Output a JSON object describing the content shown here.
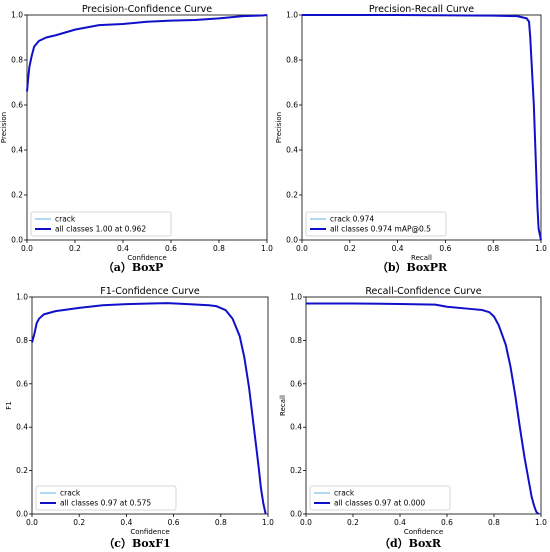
{
  "chart_data": [
    {
      "type": "line",
      "title": "Precision-Confidence Curve",
      "xlabel": "Confidence",
      "ylabel": "Precision",
      "xlim": [
        0,
        1
      ],
      "ylim": [
        0,
        1
      ],
      "xticks": [
        "0.0",
        "0.2",
        "0.4",
        "0.6",
        "0.8",
        "1.0"
      ],
      "yticks": [
        "0.0",
        "0.2",
        "0.4",
        "0.6",
        "0.8",
        "1.0"
      ],
      "caption": "（a）BoxP",
      "legend_position": "lower-left",
      "series": [
        {
          "name": "crack",
          "color": "#5fb2e4",
          "width": 1,
          "x": [
            0,
            0.005,
            0.01,
            0.02,
            0.03,
            0.05,
            0.08,
            0.12,
            0.2,
            0.3,
            0.4,
            0.5,
            0.6,
            0.7,
            0.8,
            0.85,
            0.9,
            0.93,
            0.96,
            0.98,
            1.0
          ],
          "y": [
            0.66,
            0.72,
            0.77,
            0.82,
            0.86,
            0.885,
            0.9,
            0.91,
            0.935,
            0.955,
            0.96,
            0.97,
            0.975,
            0.978,
            0.985,
            0.99,
            0.995,
            0.996,
            0.997,
            0.998,
            1.0
          ]
        },
        {
          "name": "all classes 1.00 at 0.962",
          "color": "#1010c8",
          "width": 2,
          "x": [
            0,
            0.005,
            0.01,
            0.02,
            0.03,
            0.05,
            0.08,
            0.12,
            0.2,
            0.3,
            0.4,
            0.5,
            0.6,
            0.7,
            0.8,
            0.85,
            0.9,
            0.93,
            0.96,
            0.98,
            1.0
          ],
          "y": [
            0.66,
            0.72,
            0.77,
            0.82,
            0.86,
            0.885,
            0.9,
            0.91,
            0.935,
            0.955,
            0.96,
            0.97,
            0.975,
            0.978,
            0.985,
            0.99,
            0.995,
            0.996,
            0.997,
            0.998,
            1.0
          ]
        }
      ]
    },
    {
      "type": "line",
      "title": "Precision-Recall Curve",
      "xlabel": "Recall",
      "ylabel": "Precision",
      "xlim": [
        0,
        1
      ],
      "ylim": [
        0,
        1
      ],
      "xticks": [
        "0.0",
        "0.2",
        "0.4",
        "0.6",
        "0.8",
        "1.0"
      ],
      "yticks": [
        "0.0",
        "0.2",
        "0.4",
        "0.6",
        "0.8",
        "1.0"
      ],
      "caption": "（b）BoxPR",
      "legend_position": "lower-left",
      "series": [
        {
          "name": "crack 0.974",
          "color": "#5fb2e4",
          "width": 1,
          "x": [
            0,
            0.4,
            0.8,
            0.9,
            0.92,
            0.94,
            0.95,
            0.955,
            0.96,
            0.97,
            0.975,
            0.98,
            0.985,
            0.99,
            1.0
          ],
          "y": [
            1.0,
            1.0,
            0.997,
            0.995,
            0.99,
            0.985,
            0.97,
            0.9,
            0.8,
            0.6,
            0.45,
            0.3,
            0.15,
            0.05,
            0.0
          ]
        },
        {
          "name": "all classes 0.974 mAP@0.5",
          "color": "#1010c8",
          "width": 2,
          "x": [
            0,
            0.4,
            0.8,
            0.9,
            0.92,
            0.94,
            0.95,
            0.955,
            0.96,
            0.97,
            0.975,
            0.98,
            0.985,
            0.99,
            1.0
          ],
          "y": [
            1.0,
            1.0,
            0.997,
            0.995,
            0.99,
            0.985,
            0.97,
            0.9,
            0.8,
            0.6,
            0.45,
            0.3,
            0.15,
            0.05,
            0.0
          ]
        }
      ]
    },
    {
      "type": "line",
      "title": "F1-Confidence Curve",
      "xlabel": "Confidence",
      "ylabel": "F1",
      "xlim": [
        0,
        1
      ],
      "ylim": [
        0,
        1
      ],
      "xticks": [
        "0.0",
        "0.2",
        "0.4",
        "0.6",
        "0.8",
        "1.0"
      ],
      "yticks": [
        "0.0",
        "0.2",
        "0.4",
        "0.6",
        "0.8",
        "1.0"
      ],
      "caption": "（c）BoxF1",
      "legend_position": "lower-left",
      "series": [
        {
          "name": "crack",
          "color": "#5fb2e4",
          "width": 1,
          "x": [
            0,
            0.01,
            0.02,
            0.03,
            0.05,
            0.1,
            0.2,
            0.3,
            0.4,
            0.5,
            0.575,
            0.65,
            0.7,
            0.75,
            0.78,
            0.82,
            0.85,
            0.88,
            0.9,
            0.92,
            0.94,
            0.96,
            0.97,
            0.98,
            0.99
          ],
          "y": [
            0.79,
            0.83,
            0.88,
            0.9,
            0.92,
            0.935,
            0.95,
            0.962,
            0.967,
            0.97,
            0.972,
            0.968,
            0.965,
            0.962,
            0.958,
            0.94,
            0.9,
            0.82,
            0.72,
            0.58,
            0.4,
            0.22,
            0.12,
            0.05,
            0.0
          ]
        },
        {
          "name": "all classes 0.97 at 0.575",
          "color": "#1010c8",
          "width": 2,
          "x": [
            0,
            0.01,
            0.02,
            0.03,
            0.05,
            0.1,
            0.2,
            0.3,
            0.4,
            0.5,
            0.575,
            0.65,
            0.7,
            0.75,
            0.78,
            0.82,
            0.85,
            0.88,
            0.9,
            0.92,
            0.94,
            0.96,
            0.97,
            0.98,
            0.99
          ],
          "y": [
            0.79,
            0.83,
            0.88,
            0.9,
            0.92,
            0.935,
            0.95,
            0.962,
            0.967,
            0.97,
            0.972,
            0.968,
            0.965,
            0.962,
            0.958,
            0.94,
            0.9,
            0.82,
            0.72,
            0.58,
            0.4,
            0.22,
            0.12,
            0.05,
            0.0
          ]
        }
      ]
    },
    {
      "type": "line",
      "title": "Recall-Confidence Curve",
      "xlabel": "Confidence",
      "ylabel": "Recall",
      "xlim": [
        0,
        1
      ],
      "ylim": [
        0,
        1
      ],
      "xticks": [
        "0.0",
        "0.2",
        "0.4",
        "0.6",
        "0.8",
        "1.0"
      ],
      "yticks": [
        "0.0",
        "0.2",
        "0.4",
        "0.6",
        "0.8",
        "1.0"
      ],
      "caption": "（d）BoxR",
      "legend_position": "lower-left",
      "series": [
        {
          "name": "crack",
          "color": "#5fb2e4",
          "width": 1,
          "x": [
            0,
            0.2,
            0.4,
            0.55,
            0.6,
            0.7,
            0.75,
            0.78,
            0.8,
            0.82,
            0.85,
            0.87,
            0.89,
            0.91,
            0.93,
            0.95,
            0.96,
            0.97,
            0.98,
            0.99
          ],
          "y": [
            0.97,
            0.97,
            0.968,
            0.965,
            0.955,
            0.945,
            0.94,
            0.93,
            0.91,
            0.87,
            0.78,
            0.68,
            0.55,
            0.4,
            0.26,
            0.14,
            0.08,
            0.04,
            0.01,
            0.0
          ]
        },
        {
          "name": "all classes 0.97 at 0.000",
          "color": "#1010c8",
          "width": 2,
          "x": [
            0,
            0.2,
            0.4,
            0.55,
            0.6,
            0.7,
            0.75,
            0.78,
            0.8,
            0.82,
            0.85,
            0.87,
            0.89,
            0.91,
            0.93,
            0.95,
            0.96,
            0.97,
            0.98,
            0.99
          ],
          "y": [
            0.97,
            0.97,
            0.968,
            0.965,
            0.955,
            0.945,
            0.94,
            0.93,
            0.91,
            0.87,
            0.78,
            0.68,
            0.55,
            0.4,
            0.26,
            0.14,
            0.08,
            0.04,
            0.01,
            0.0
          ]
        }
      ]
    }
  ]
}
